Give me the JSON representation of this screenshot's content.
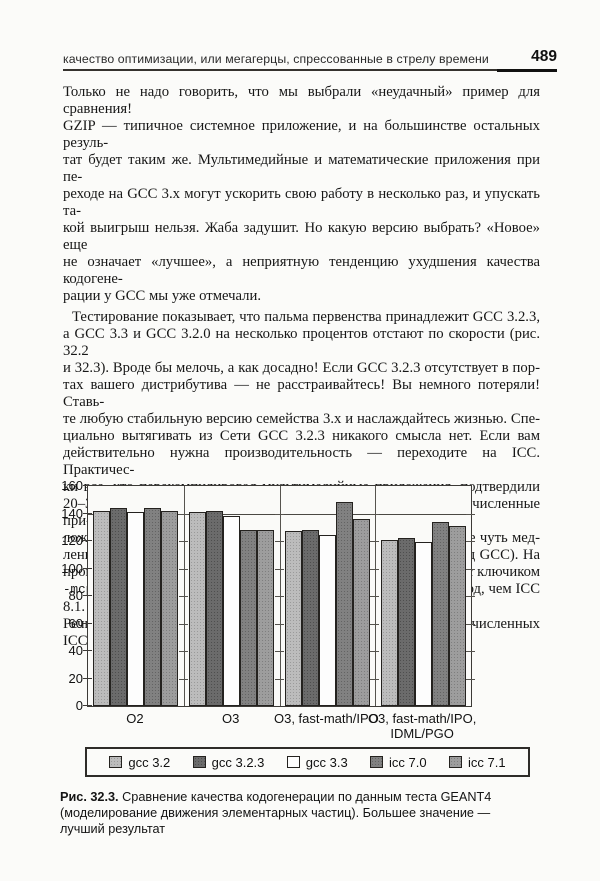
{
  "header": {
    "title": "качество оптимизации, или мегагерцы, спрессованные в стрелу времени",
    "page_number": "489"
  },
  "paragraphs": [
    {
      "indent": false,
      "lines": [
        "Только не надо говорить, что мы выбрали «неудачный» пример для сравнения!",
        "GZIP — типичное системное приложение, и на большинстве остальных резуль-",
        "тат будет таким же. Мультимедийные и математические приложения при пе-",
        "реходе на GCC 3.x могут ускорить свою работу в несколько раз, и упускать та-",
        "кой выигрыш нельзя. Жаба задушит. Но какую версию выбрать? «Новое» еще",
        "не означает «лучшее», а неприятную тенденцию ухудшения качества кодогене-",
        "рации у GCC мы уже отмечали."
      ]
    },
    {
      "indent": true,
      "lines": [
        "Тестирование показывает, что пальма первенства принадлежит GCC 3.2.3,",
        "а GCC 3.3 и GCC 3.2.0 на несколько процентов отстают по скорости (рис. 32.2",
        "и 32.3). Вроде бы мелочь, а как досадно! Если GCC 3.2.3 отсутствует в пор-",
        "тах вашего дистрибутива — не расстраивайтесь! Вы немного потеряли! Ставь-",
        "те любую стабильную версию семейства 3.x и наслаждайтесь жизнью. Спе-",
        "циально вытягивать из Сети GCC 3.2.3 никакого смысла нет. Если вам",
        "действительно нужна производительность — переходите на ICC. Практичес-",
        "ки все, кто перекомпилировал мультимедийные приложения, подтвердили",
        "20–30-процентное ускорение по сравнению с GCC 3.x. Целочисленные при-",
        "ложения в обоих случаях работают с той же скоростью или даже чуть мед-",
        "леннее (особенно если программа была специально заточена под GCC). На",
        "процессорах фирмы AMD ситуация выглядит иначе, и GCC 3.3 с ключиком",
        "`-mcpu=cpu-type` athlon генерирует на 30–50-% более быстрый код, чем ICC 8.1.",
        "Речь, разумеется, идет только о векторных операциях, а на целочисленных",
        "ICC по-прежнему впереди."
      ]
    }
  ],
  "chart_data": {
    "type": "bar",
    "title": "",
    "xlabel": "",
    "ylabel": "",
    "ylim": [
      0,
      160
    ],
    "ytick_step": 20,
    "grid_line_at": 140,
    "legend_position": "bottom",
    "categories": [
      [
        "O2"
      ],
      [
        "O3"
      ],
      [
        "O3, fast-math/IPO"
      ],
      [
        "O3, fast-math/IPO,",
        "IDML/PGO"
      ]
    ],
    "series": [
      {
        "name": "gcc 3.2",
        "values": [
          142,
          141,
          127,
          121
        ],
        "fill": "#bcbcbc",
        "dot": "#9a9a9a"
      },
      {
        "name": "gcc 3.2.3",
        "values": [
          144,
          142,
          128,
          122
        ],
        "fill": "#6b6b6b",
        "dot": "#4e4e4e"
      },
      {
        "name": "gcc 3.3",
        "values": [
          141,
          138,
          124,
          119
        ],
        "fill": "#fdfdfd",
        "dot": ""
      },
      {
        "name": "icc 7.0",
        "values": [
          144,
          128,
          148,
          134
        ],
        "fill": "#818181",
        "dot": "#636363"
      },
      {
        "name": "icc 7.1",
        "values": [
          142,
          128,
          136,
          131
        ],
        "fill": "#9d9d9d",
        "dot": "#7e7e7e"
      }
    ]
  },
  "caption": {
    "label": "Рис. 32.3.",
    "text": " Сравнение качества кодогенерации по данным теста GEANT4 (моделирование движения элементарных частиц). Большее значение — лучший результат"
  },
  "colors": {
    "page_background": "#fbfbf9",
    "text": "#1c1c1c",
    "axis": "#3c3a37"
  }
}
